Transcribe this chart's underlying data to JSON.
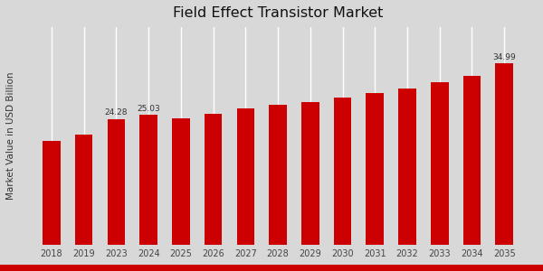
{
  "title": "Field Effect Transistor Market",
  "ylabel": "Market Value in USD Billion",
  "categories": [
    "2018",
    "2019",
    "2023",
    "2024",
    "2025",
    "2026",
    "2027",
    "2028",
    "2029",
    "2030",
    "2031",
    "2032",
    "2033",
    "2034",
    "2035"
  ],
  "values": [
    20.0,
    21.2,
    24.28,
    25.03,
    24.4,
    25.3,
    26.3,
    27.0,
    27.6,
    28.4,
    29.2,
    30.1,
    31.3,
    32.6,
    34.99
  ],
  "bar_color": "#cc0000",
  "background_color": "#d8d8d8",
  "label_values": {
    "2023": "24.28",
    "2024": "25.03",
    "2035": "34.99"
  },
  "title_fontsize": 11.5,
  "ylabel_fontsize": 7.5,
  "tick_fontsize": 7,
  "annotation_fontsize": 6.5,
  "ylim": [
    0,
    42
  ],
  "bar_width": 0.55
}
